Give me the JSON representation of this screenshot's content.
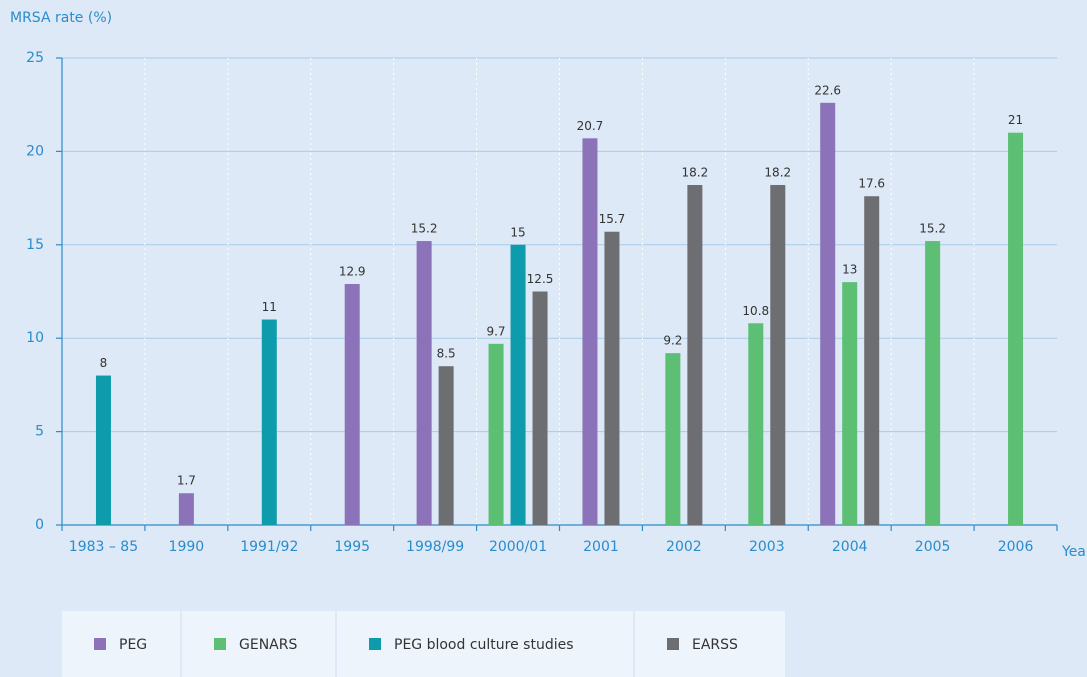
{
  "chart_data": {
    "type": "bar",
    "y_label": "MRSA rate (%)",
    "x_label": "Year",
    "categories": [
      "1983 – 85",
      "1990",
      "1991/92",
      "1995",
      "1998/99",
      "2000/01",
      "2001",
      "2002",
      "2003",
      "2004",
      "2005",
      "2006"
    ],
    "series": [
      {
        "name": "PEG",
        "color": "#8c72b8",
        "values": [
          null,
          1.7,
          null,
          12.9,
          15.2,
          null,
          20.7,
          null,
          null,
          22.6,
          null,
          null
        ]
      },
      {
        "name": "GENARS",
        "color": "#5cbf74",
        "values": [
          null,
          null,
          null,
          null,
          null,
          9.7,
          null,
          9.2,
          10.8,
          13,
          15.2,
          21
        ]
      },
      {
        "name": "PEG blood culture studies",
        "color": "#0e9bab",
        "values": [
          8,
          null,
          11,
          null,
          null,
          15,
          null,
          null,
          null,
          null,
          null,
          null
        ]
      },
      {
        "name": "EARSS",
        "color": "#6d6e71",
        "values": [
          null,
          null,
          null,
          null,
          8.5,
          12.5,
          15.7,
          18.2,
          18.2,
          17.6,
          null,
          null
        ]
      }
    ],
    "ylim": [
      0,
      25
    ],
    "yticks": [
      0,
      5,
      10,
      15,
      20,
      25
    ],
    "grid": true
  }
}
